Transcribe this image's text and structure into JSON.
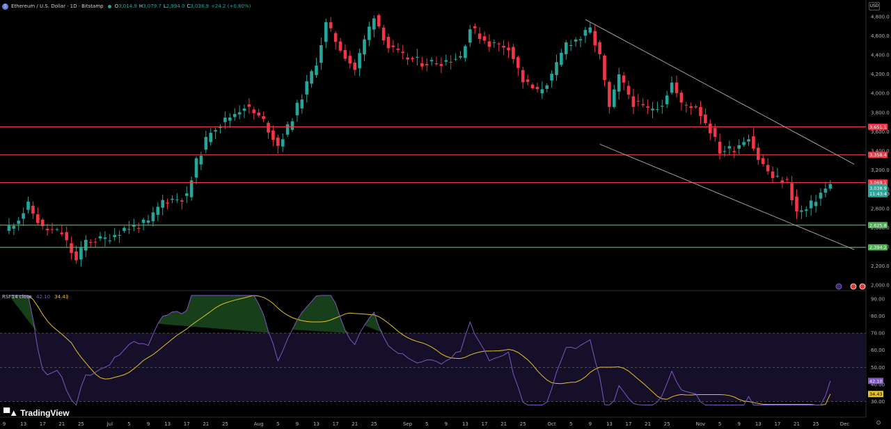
{
  "header": {
    "symbol_icon": "ethereum-icon",
    "title": "Ethereum / U.S. Dollar · 1D · Bitstamp",
    "status_color": "#26a69a",
    "open_label": "O",
    "open": "3,014.9",
    "high_label": "H",
    "high": "3,079.7",
    "low_label": "L",
    "low": "2,994.0",
    "close_label": "C",
    "close": "3,038.9",
    "change": "+24.2 (+0.80%)"
  },
  "currency": "USD",
  "rsi_header": {
    "name": "RSI",
    "params": "14 close",
    "rsi_value": "42.10",
    "ma_value": "34.43"
  },
  "branding": {
    "logo_icon": "tradingview-logo-icon",
    "name": "TradingView"
  },
  "settings_icon": "gear-icon",
  "chart_data": [
    {
      "type": "candlestick",
      "title": "Ethereum / U.S. Dollar · 1D · Bitstamp",
      "colors": {
        "up": "#26a69a",
        "down": "#f23645",
        "resistance": "#f23645",
        "support": "#4caf50",
        "channel": "#9e9e9e"
      },
      "price_axis": {
        "ticks": [
          "4,800.0",
          "4,600.0",
          "4,400.0",
          "4,200.0",
          "4,000.0",
          "3,800.0",
          "3,600.0",
          "3,400.0",
          "3,200.0",
          "3,000.0",
          "2,800.0",
          "2,600.0",
          "2,400.0",
          "2,200.0",
          "2,000.0"
        ],
        "ylim": [
          1950,
          4850
        ]
      },
      "time_axis": {
        "ticks": [
          {
            "label": "9",
            "i": 0
          },
          {
            "label": "13",
            "i": 4
          },
          {
            "label": "17",
            "i": 8
          },
          {
            "label": "21",
            "i": 12
          },
          {
            "label": "25",
            "i": 16
          },
          {
            "label": "Jul",
            "i": 22
          },
          {
            "label": "5",
            "i": 26
          },
          {
            "label": "9",
            "i": 30
          },
          {
            "label": "13",
            "i": 34
          },
          {
            "label": "17",
            "i": 38
          },
          {
            "label": "21",
            "i": 42
          },
          {
            "label": "25",
            "i": 46
          },
          {
            "label": "Aug",
            "i": 53
          },
          {
            "label": "5",
            "i": 57
          },
          {
            "label": "9",
            "i": 61
          },
          {
            "label": "13",
            "i": 65
          },
          {
            "label": "17",
            "i": 69
          },
          {
            "label": "21",
            "i": 73
          },
          {
            "label": "25",
            "i": 77
          },
          {
            "label": "Sep",
            "i": 84
          },
          {
            "label": "5",
            "i": 88
          },
          {
            "label": "9",
            "i": 92
          },
          {
            "label": "13",
            "i": 96
          },
          {
            "label": "17",
            "i": 100
          },
          {
            "label": "21",
            "i": 104
          },
          {
            "label": "25",
            "i": 108
          },
          {
            "label": "Oct",
            "i": 114
          },
          {
            "label": "5",
            "i": 118
          },
          {
            "label": "9",
            "i": 122
          },
          {
            "label": "13",
            "i": 126
          },
          {
            "label": "17",
            "i": 130
          },
          {
            "label": "21",
            "i": 134
          },
          {
            "label": "25",
            "i": 138
          },
          {
            "label": "Nov",
            "i": 145
          },
          {
            "label": "5",
            "i": 149
          },
          {
            "label": "9",
            "i": 153
          },
          {
            "label": "13",
            "i": 157
          },
          {
            "label": "17",
            "i": 161
          },
          {
            "label": "21",
            "i": 165
          },
          {
            "label": "25",
            "i": 169
          },
          {
            "label": "Dec",
            "i": 175
          }
        ]
      },
      "levels": [
        {
          "kind": "resistance",
          "value": 3651.1,
          "label": "3,651.1"
        },
        {
          "kind": "resistance",
          "value": 3358.4,
          "label": "3,358.4"
        },
        {
          "kind": "resistance",
          "value": 3069.1,
          "label": "3,069.1"
        },
        {
          "kind": "support",
          "value": 2625.8,
          "label": "2,625.8"
        },
        {
          "kind": "support",
          "value": 2394.2,
          "label": "2,394.2"
        }
      ],
      "last_price": {
        "value": 3038.9,
        "label": "3,038.9",
        "countdown": "11:43:43"
      },
      "channel": {
        "upper": [
          {
            "i": 121,
            "price": 4770
          },
          {
            "i": 177,
            "price": 3260
          }
        ],
        "lower": [
          {
            "i": 124,
            "price": 3470
          },
          {
            "i": 177,
            "price": 2370
          }
        ]
      },
      "anchors": [
        {
          "i": 0,
          "price": 2560
        },
        {
          "i": 3,
          "price": 2700
        },
        {
          "i": 5,
          "price": 2830
        },
        {
          "i": 8,
          "price": 2590
        },
        {
          "i": 12,
          "price": 2540
        },
        {
          "i": 15,
          "price": 2250
        },
        {
          "i": 17,
          "price": 2460
        },
        {
          "i": 21,
          "price": 2480
        },
        {
          "i": 25,
          "price": 2590
        },
        {
          "i": 30,
          "price": 2650
        },
        {
          "i": 33,
          "price": 2880
        },
        {
          "i": 38,
          "price": 2920
        },
        {
          "i": 40,
          "price": 3280
        },
        {
          "i": 43,
          "price": 3620
        },
        {
          "i": 46,
          "price": 3720
        },
        {
          "i": 50,
          "price": 3870
        },
        {
          "i": 54,
          "price": 3710
        },
        {
          "i": 57,
          "price": 3460
        },
        {
          "i": 59,
          "price": 3640
        },
        {
          "i": 62,
          "price": 3970
        },
        {
          "i": 65,
          "price": 4330
        },
        {
          "i": 67,
          "price": 4720
        },
        {
          "i": 70,
          "price": 4470
        },
        {
          "i": 73,
          "price": 4250
        },
        {
          "i": 75,
          "price": 4550
        },
        {
          "i": 77,
          "price": 4820
        },
        {
          "i": 80,
          "price": 4480
        },
        {
          "i": 83,
          "price": 4380
        },
        {
          "i": 87,
          "price": 4320
        },
        {
          "i": 91,
          "price": 4330
        },
        {
          "i": 95,
          "price": 4390
        },
        {
          "i": 97,
          "price": 4680
        },
        {
          "i": 101,
          "price": 4520
        },
        {
          "i": 105,
          "price": 4490
        },
        {
          "i": 108,
          "price": 4130
        },
        {
          "i": 111,
          "price": 4010
        },
        {
          "i": 114,
          "price": 4170
        },
        {
          "i": 117,
          "price": 4520
        },
        {
          "i": 120,
          "price": 4580
        },
        {
          "i": 122,
          "price": 4660
        },
        {
          "i": 124,
          "price": 4380
        },
        {
          "i": 126,
          "price": 3840
        },
        {
          "i": 128,
          "price": 4170
        },
        {
          "i": 131,
          "price": 3900
        },
        {
          "i": 134,
          "price": 3830
        },
        {
          "i": 137,
          "price": 3900
        },
        {
          "i": 139,
          "price": 4110
        },
        {
          "i": 141,
          "price": 3880
        },
        {
          "i": 144,
          "price": 3870
        },
        {
          "i": 147,
          "price": 3620
        },
        {
          "i": 149,
          "price": 3400
        },
        {
          "i": 152,
          "price": 3430
        },
        {
          "i": 155,
          "price": 3560
        },
        {
          "i": 157,
          "price": 3320
        },
        {
          "i": 160,
          "price": 3120
        },
        {
          "i": 163,
          "price": 3080
        },
        {
          "i": 165,
          "price": 2760
        },
        {
          "i": 167,
          "price": 2780
        },
        {
          "i": 170,
          "price": 2960
        },
        {
          "i": 172,
          "price": 3039
        }
      ]
    },
    {
      "type": "line",
      "title": "RSI 14 close",
      "series": [
        {
          "name": "RSI",
          "color": "#7e57c2",
          "value": 42.1
        },
        {
          "name": "RSI-based MA",
          "color": "#e6c229",
          "value": 34.43
        }
      ],
      "ylim": [
        27,
        94
      ],
      "ticks": [
        "90.00",
        "80.00",
        "70.00",
        "60.00",
        "50.00",
        "40.00",
        "30.00"
      ],
      "bands": {
        "upper": 70,
        "middle": 50,
        "lower": 30
      }
    }
  ]
}
